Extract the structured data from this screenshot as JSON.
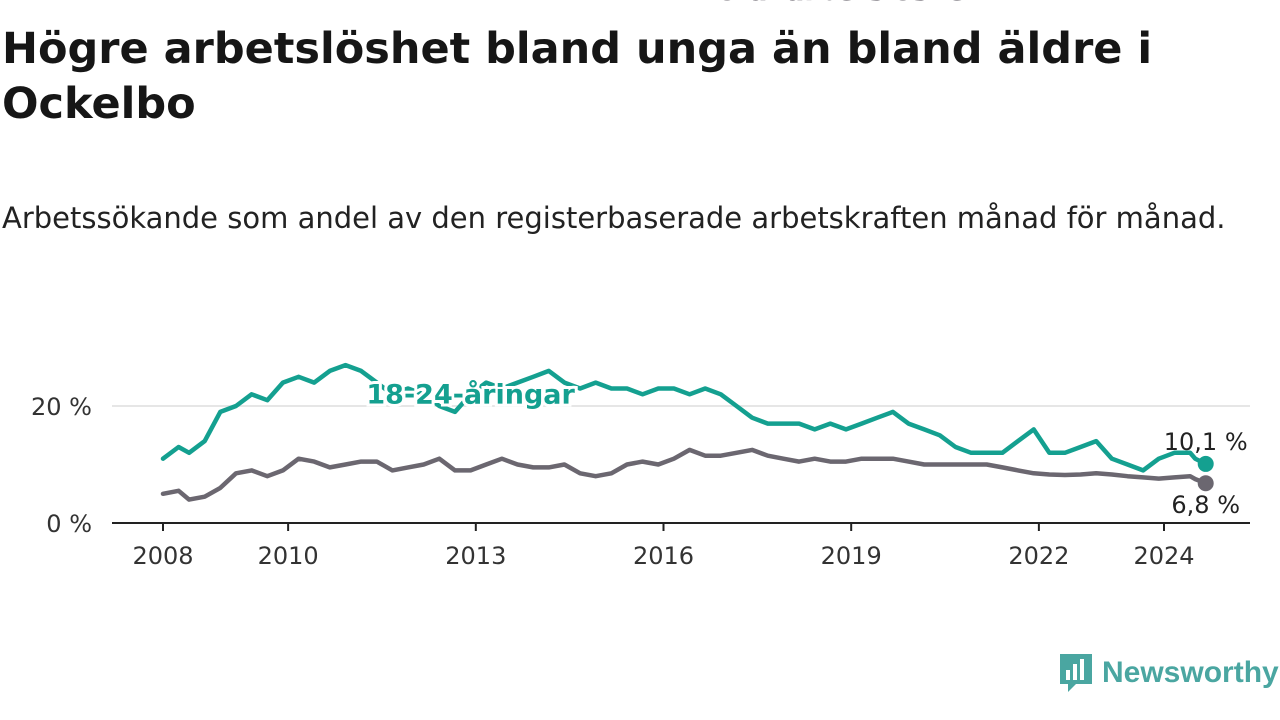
{
  "title": "Högre arbetslöshet bland unga än bland äldre i Ockelbo",
  "subtitle": "Arbetssökande som andel av den registerbaserade arbetskraften månad för månad.",
  "brand": {
    "name": "Newsworthy",
    "icon": "newsworthy-logo-icon"
  },
  "colors": {
    "youth": "#14a090",
    "total": "#6b6770",
    "grid": "#dddddd",
    "axis": "#222222",
    "brand": "#4aa6a1"
  },
  "chart_data": {
    "type": "line",
    "x_range": [
      "2008-01",
      "2025-06"
    ],
    "ylim": [
      0,
      33
    ],
    "y_ticks": [
      {
        "value": 0,
        "label": "0 %"
      },
      {
        "value": 20,
        "label": "20 %"
      }
    ],
    "x_ticks": [
      {
        "value": "2008-01",
        "label": "2008"
      },
      {
        "value": "2010-01",
        "label": "2010"
      },
      {
        "value": "2013-01",
        "label": "2013"
      },
      {
        "value": "2016-01",
        "label": "2016"
      },
      {
        "value": "2019-01",
        "label": "2019"
      },
      {
        "value": "2022-01",
        "label": "2022"
      },
      {
        "value": "2024-01",
        "label": "2024"
      }
    ],
    "grid": "horizontal",
    "series": [
      {
        "name": "18-24-åringar",
        "color": "#14a090",
        "end_label": "10,1 %",
        "x": [
          "2008-01",
          "2008-04",
          "2008-06",
          "2008-09",
          "2008-12",
          "2009-03",
          "2009-06",
          "2009-09",
          "2009-12",
          "2010-03",
          "2010-06",
          "2010-09",
          "2010-12",
          "2011-03",
          "2011-06",
          "2011-09",
          "2011-12",
          "2012-03",
          "2012-06",
          "2012-09",
          "2012-12",
          "2013-03",
          "2013-06",
          "2013-09",
          "2013-12",
          "2014-03",
          "2014-06",
          "2014-09",
          "2014-12",
          "2015-03",
          "2015-06",
          "2015-09",
          "2015-12",
          "2016-03",
          "2016-06",
          "2016-09",
          "2016-12",
          "2017-03",
          "2017-06",
          "2017-09",
          "2017-12",
          "2018-03",
          "2018-06",
          "2018-09",
          "2018-12",
          "2019-03",
          "2019-06",
          "2019-09",
          "2019-12",
          "2020-03",
          "2020-06",
          "2020-09",
          "2020-12",
          "2021-03",
          "2021-06",
          "2021-09",
          "2021-12",
          "2022-03",
          "2022-06",
          "2022-09",
          "2022-12",
          "2023-03",
          "2023-06",
          "2023-09",
          "2023-12",
          "2024-03",
          "2024-06",
          "2024-07",
          "2024-09"
        ],
        "y": [
          11,
          13,
          12,
          14,
          19,
          20,
          22,
          21,
          24,
          25,
          24,
          26,
          27,
          26,
          24,
          22,
          23,
          22,
          20,
          19,
          22,
          24,
          23,
          24,
          25,
          26,
          24,
          23,
          24,
          23,
          23,
          22,
          23,
          23,
          22,
          23,
          22,
          20,
          18,
          17,
          17,
          17,
          16,
          17,
          16,
          17,
          18,
          19,
          17,
          16,
          15,
          13,
          12,
          12,
          12,
          14,
          16,
          12,
          12,
          13,
          14,
          11,
          10,
          9,
          11,
          12,
          12,
          11,
          10.1
        ]
      },
      {
        "name": "Total arbetslöshet",
        "color": "#6b6770",
        "end_label": "6,8 %",
        "x": [
          "2008-01",
          "2008-04",
          "2008-06",
          "2008-09",
          "2008-12",
          "2009-03",
          "2009-06",
          "2009-09",
          "2009-12",
          "2010-03",
          "2010-06",
          "2010-09",
          "2010-12",
          "2011-03",
          "2011-06",
          "2011-09",
          "2011-12",
          "2012-03",
          "2012-06",
          "2012-09",
          "2012-12",
          "2013-03",
          "2013-06",
          "2013-09",
          "2013-12",
          "2014-03",
          "2014-06",
          "2014-09",
          "2014-12",
          "2015-03",
          "2015-06",
          "2015-09",
          "2015-12",
          "2016-03",
          "2016-06",
          "2016-09",
          "2016-12",
          "2017-03",
          "2017-06",
          "2017-09",
          "2017-12",
          "2018-03",
          "2018-06",
          "2018-09",
          "2018-12",
          "2019-03",
          "2019-06",
          "2019-09",
          "2019-12",
          "2020-03",
          "2020-06",
          "2020-09",
          "2020-12",
          "2021-03",
          "2021-06",
          "2021-09",
          "2021-12",
          "2022-03",
          "2022-06",
          "2022-09",
          "2022-12",
          "2023-03",
          "2023-06",
          "2023-09",
          "2023-12",
          "2024-03",
          "2024-06",
          "2024-07",
          "2024-09"
        ],
        "y": [
          5,
          5.5,
          4,
          4.5,
          6,
          8.5,
          9,
          8,
          9,
          11,
          10.5,
          9.5,
          10,
          10.5,
          10.5,
          9,
          9.5,
          10,
          11,
          9,
          9,
          10,
          11,
          10,
          9.5,
          9.5,
          10,
          8.5,
          8,
          8.5,
          10,
          10.5,
          10,
          11,
          12.5,
          11.5,
          11.5,
          12,
          12.5,
          11.5,
          11,
          10.5,
          11,
          10.5,
          10.5,
          11,
          11,
          11,
          10.5,
          10,
          10,
          10,
          10,
          10,
          9.5,
          9,
          8.5,
          8.3,
          8.2,
          8.3,
          8.5,
          8.3,
          8,
          7.8,
          7.6,
          7.8,
          8,
          7.5,
          6.8
        ]
      }
    ],
    "series_labels": [
      {
        "series": 0,
        "text": "18-24-åringar",
        "at": "2012-12"
      },
      {
        "series": 1,
        "text": "Total arbetslöshet",
        "at": "2018-11"
      }
    ]
  }
}
